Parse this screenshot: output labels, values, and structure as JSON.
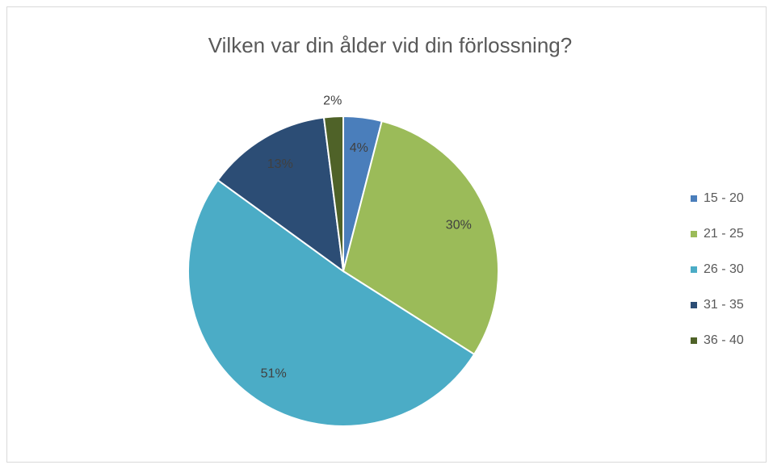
{
  "chart_data": {
    "type": "pie",
    "title": "Vilken var din ålder vid din förlossning?",
    "categories": [
      "15 - 20",
      "21 - 25",
      "26 - 30",
      "31 - 35",
      "36 - 40"
    ],
    "values": [
      4,
      30,
      51,
      13,
      2
    ],
    "value_labels": [
      "4%",
      "30%",
      "51%",
      "13%",
      "2%"
    ],
    "colors": [
      "#4a7ebb",
      "#9bbb59",
      "#4bacc6",
      "#2c4d75",
      "#4f6228"
    ],
    "legend": "right"
  }
}
